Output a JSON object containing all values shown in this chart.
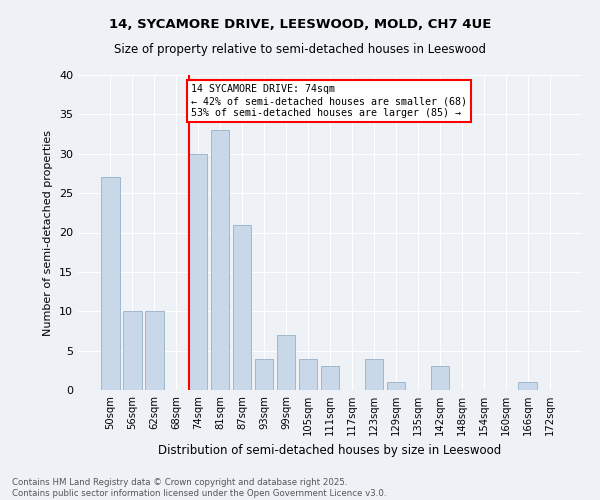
{
  "title1": "14, SYCAMORE DRIVE, LEESWOOD, MOLD, CH7 4UE",
  "title2": "Size of property relative to semi-detached houses in Leeswood",
  "xlabel": "Distribution of semi-detached houses by size in Leeswood",
  "ylabel": "Number of semi-detached properties",
  "categories": [
    "50sqm",
    "56sqm",
    "62sqm",
    "68sqm",
    "74sqm",
    "81sqm",
    "87sqm",
    "93sqm",
    "99sqm",
    "105sqm",
    "111sqm",
    "117sqm",
    "123sqm",
    "129sqm",
    "135sqm",
    "142sqm",
    "148sqm",
    "154sqm",
    "160sqm",
    "166sqm",
    "172sqm"
  ],
  "values": [
    27,
    10,
    10,
    0,
    30,
    33,
    21,
    4,
    7,
    4,
    3,
    0,
    4,
    1,
    0,
    3,
    0,
    0,
    0,
    1,
    0
  ],
  "bar_color": "#c8d8e8",
  "bar_edge_color": "#a0b8cc",
  "annotation_text": "14 SYCAMORE DRIVE: 74sqm\n← 42% of semi-detached houses are smaller (68)\n53% of semi-detached houses are larger (85) →",
  "vline_category_index": 4,
  "footnote": "Contains HM Land Registry data © Crown copyright and database right 2025.\nContains public sector information licensed under the Open Government Licence v3.0.",
  "background_color": "#eef2f6",
  "ylim": [
    0,
    40
  ],
  "yticks": [
    0,
    5,
    10,
    15,
    20,
    25,
    30,
    35,
    40
  ]
}
